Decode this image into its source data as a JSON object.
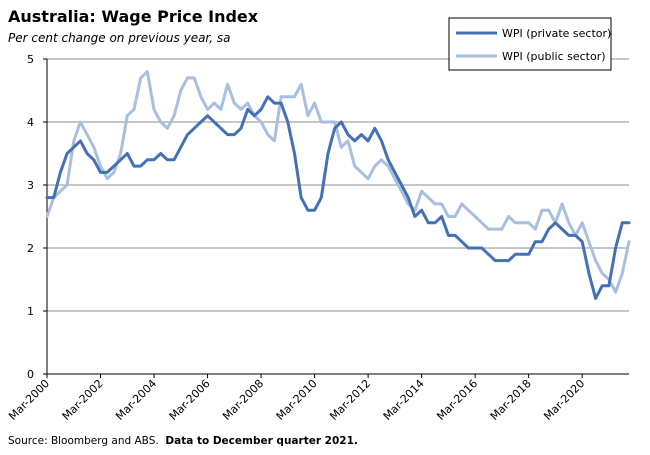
{
  "header": {
    "title": "Australia: Wage Price Index",
    "subtitle": "Per cent change on previous year, sa"
  },
  "footer": {
    "source": "Source: Bloomberg and ABS.",
    "note": "Data to December quarter 2021."
  },
  "colors": {
    "private": "#4471b6",
    "public": "#a9bfdf",
    "grid": "#8c8c8c",
    "axis": "#000000"
  },
  "chart_data": {
    "type": "line",
    "title": "Australia: Wage Price Index",
    "subtitle": "Per cent change on previous year, sa",
    "xlabel": "",
    "ylabel": "",
    "ylim": [
      0,
      5
    ],
    "yticks": [
      "0",
      "1",
      "2",
      "3",
      "4",
      "5"
    ],
    "xlim": [
      "Mar-2000",
      "Dec-2021"
    ],
    "xticks": [
      "Mar-2000",
      "Mar-2002",
      "Mar-2004",
      "Mar-2006",
      "Mar-2008",
      "Mar-2010",
      "Mar-2012",
      "Mar-2014",
      "Mar-2016",
      "Mar-2018",
      "Mar-2020"
    ],
    "grid": true,
    "legend": "top-right",
    "x": [
      "Mar-2000",
      "Jun-2000",
      "Sep-2000",
      "Dec-2000",
      "Mar-2001",
      "Jun-2001",
      "Sep-2001",
      "Dec-2001",
      "Mar-2002",
      "Jun-2002",
      "Sep-2002",
      "Dec-2002",
      "Mar-2003",
      "Jun-2003",
      "Sep-2003",
      "Dec-2003",
      "Mar-2004",
      "Jun-2004",
      "Sep-2004",
      "Dec-2004",
      "Mar-2005",
      "Jun-2005",
      "Sep-2005",
      "Dec-2005",
      "Mar-2006",
      "Jun-2006",
      "Sep-2006",
      "Dec-2006",
      "Mar-2007",
      "Jun-2007",
      "Sep-2007",
      "Dec-2007",
      "Mar-2008",
      "Jun-2008",
      "Sep-2008",
      "Dec-2008",
      "Mar-2009",
      "Jun-2009",
      "Sep-2009",
      "Dec-2009",
      "Mar-2010",
      "Jun-2010",
      "Sep-2010",
      "Dec-2010",
      "Mar-2011",
      "Jun-2011",
      "Sep-2011",
      "Dec-2011",
      "Mar-2012",
      "Jun-2012",
      "Sep-2012",
      "Dec-2012",
      "Mar-2013",
      "Jun-2013",
      "Sep-2013",
      "Dec-2013",
      "Mar-2014",
      "Jun-2014",
      "Sep-2014",
      "Dec-2014",
      "Mar-2015",
      "Jun-2015",
      "Sep-2015",
      "Dec-2015",
      "Mar-2016",
      "Jun-2016",
      "Sep-2016",
      "Dec-2016",
      "Mar-2017",
      "Jun-2017",
      "Sep-2017",
      "Dec-2017",
      "Mar-2018",
      "Jun-2018",
      "Sep-2018",
      "Dec-2018",
      "Mar-2019",
      "Jun-2019",
      "Sep-2019",
      "Dec-2019",
      "Mar-2020",
      "Jun-2020",
      "Sep-2020",
      "Dec-2020",
      "Mar-2021",
      "Jun-2021",
      "Sep-2021",
      "Dec-2021"
    ],
    "series": [
      {
        "name": "WPI (private sector)",
        "color": "#4471b6",
        "values": [
          2.8,
          2.8,
          3.2,
          3.5,
          3.6,
          3.7,
          3.5,
          3.4,
          3.2,
          3.2,
          3.3,
          3.4,
          3.5,
          3.3,
          3.3,
          3.4,
          3.4,
          3.5,
          3.4,
          3.4,
          3.6,
          3.8,
          3.9,
          4.0,
          4.1,
          4.0,
          3.9,
          3.8,
          3.8,
          3.9,
          4.2,
          4.1,
          4.2,
          4.4,
          4.3,
          4.3,
          4.0,
          3.5,
          2.8,
          2.6,
          2.6,
          2.8,
          3.5,
          3.9,
          4.0,
          3.8,
          3.7,
          3.8,
          3.7,
          3.9,
          3.7,
          3.4,
          3.2,
          3.0,
          2.8,
          2.5,
          2.6,
          2.4,
          2.4,
          2.5,
          2.2,
          2.2,
          2.1,
          2.0,
          2.0,
          2.0,
          1.9,
          1.8,
          1.8,
          1.8,
          1.9,
          1.9,
          1.9,
          2.1,
          2.1,
          2.3,
          2.4,
          2.3,
          2.2,
          2.2,
          2.1,
          1.6,
          1.2,
          1.4,
          1.4,
          2.0,
          2.4,
          2.4
        ]
      },
      {
        "name": "WPI (public sector)",
        "color": "#a9bfdf",
        "values": [
          2.5,
          2.8,
          2.9,
          3.0,
          3.7,
          4.0,
          3.8,
          3.6,
          3.3,
          3.1,
          3.2,
          3.5,
          4.1,
          4.2,
          4.7,
          4.8,
          4.2,
          4.0,
          3.9,
          4.1,
          4.5,
          4.7,
          4.7,
          4.4,
          4.2,
          4.3,
          4.2,
          4.6,
          4.3,
          4.2,
          4.3,
          4.1,
          4.0,
          3.8,
          3.7,
          4.4,
          4.4,
          4.4,
          4.6,
          4.1,
          4.3,
          4.0,
          4.0,
          4.0,
          3.6,
          3.7,
          3.3,
          3.2,
          3.1,
          3.3,
          3.4,
          3.3,
          3.1,
          2.9,
          2.7,
          2.6,
          2.9,
          2.8,
          2.7,
          2.7,
          2.5,
          2.5,
          2.7,
          2.6,
          2.5,
          2.4,
          2.3,
          2.3,
          2.3,
          2.5,
          2.4,
          2.4,
          2.4,
          2.3,
          2.6,
          2.6,
          2.4,
          2.7,
          2.4,
          2.2,
          2.4,
          2.1,
          1.8,
          1.6,
          1.5,
          1.3,
          1.6,
          2.1
        ]
      }
    ]
  }
}
